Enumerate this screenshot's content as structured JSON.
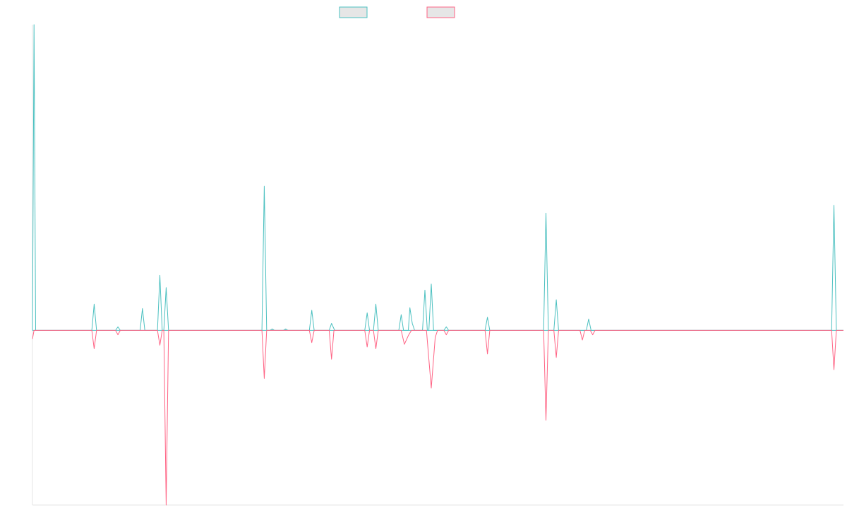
{
  "chart_data": {
    "type": "line",
    "title": "",
    "xlabel": "",
    "ylabel": "",
    "grid": false,
    "legend": "top-center",
    "ylim": [
      -100,
      175
    ],
    "series": [
      {
        "color": "#4bc0c0",
        "fill": "#e6e6e6",
        "points": [
          [
            0,
            0
          ],
          [
            0.2,
            175
          ],
          [
            0.4,
            0
          ],
          [
            7.5,
            0
          ],
          [
            7.8,
            15
          ],
          [
            8.1,
            0
          ],
          [
            10.5,
            0
          ],
          [
            10.8,
            2
          ],
          [
            11.1,
            0
          ],
          [
            13.6,
            0
          ],
          [
            13.9,
            12.5
          ],
          [
            14.2,
            0
          ],
          [
            15.8,
            0
          ],
          [
            16.1,
            31.5
          ],
          [
            16.4,
            0
          ],
          [
            16.6,
            0
          ],
          [
            16.9,
            24.5
          ],
          [
            17.2,
            0
          ],
          [
            29.0,
            0
          ],
          [
            29.3,
            82.5
          ],
          [
            29.6,
            0
          ],
          [
            30.0,
            0
          ],
          [
            30.3,
            0.8
          ],
          [
            30.6,
            0
          ],
          [
            31.7,
            0
          ],
          [
            32.0,
            0.8
          ],
          [
            32.3,
            0
          ],
          [
            35.0,
            0
          ],
          [
            35.3,
            11.5
          ],
          [
            35.6,
            0
          ],
          [
            37.5,
            0
          ],
          [
            37.8,
            4.0
          ],
          [
            38.2,
            0
          ],
          [
            42.0,
            0
          ],
          [
            42.3,
            10.0
          ],
          [
            42.6,
            0
          ],
          [
            43.1,
            0
          ],
          [
            43.4,
            15.0
          ],
          [
            43.7,
            0
          ],
          [
            46.3,
            0
          ],
          [
            46.6,
            9.0
          ],
          [
            46.9,
            0
          ],
          [
            47.5,
            0
          ],
          [
            47.7,
            13.0
          ],
          [
            48.0,
            4.0
          ],
          [
            48.3,
            0
          ],
          [
            49.3,
            0
          ],
          [
            49.6,
            23.0
          ],
          [
            49.9,
            0
          ],
          [
            50.1,
            0
          ],
          [
            50.4,
            26.5
          ],
          [
            50.7,
            0
          ],
          [
            52.0,
            0
          ],
          [
            52.3,
            2.0
          ],
          [
            52.6,
            0
          ],
          [
            57.2,
            0
          ],
          [
            57.5,
            7.5
          ],
          [
            57.8,
            0
          ],
          [
            64.6,
            0
          ],
          [
            64.9,
            67.0
          ],
          [
            65.2,
            0
          ],
          [
            65.9,
            0
          ],
          [
            66.2,
            17.5
          ],
          [
            66.5,
            0
          ],
          [
            70.0,
            0
          ],
          [
            70.3,
            6.5
          ],
          [
            70.6,
            0
          ],
          [
            101.0,
            0
          ],
          [
            101.3,
            71.5
          ],
          [
            101.6,
            0
          ],
          [
            102.5,
            0
          ]
        ]
      },
      {
        "color": "#ff6384",
        "fill": "#e6e6e6",
        "points": [
          [
            0,
            -5
          ],
          [
            0.2,
            0
          ],
          [
            0.4,
            0
          ],
          [
            7.5,
            0
          ],
          [
            7.8,
            -10.5
          ],
          [
            8.1,
            0
          ],
          [
            10.5,
            0
          ],
          [
            10.8,
            -2.5
          ],
          [
            11.1,
            0
          ],
          [
            15.8,
            0
          ],
          [
            16.1,
            -8.5
          ],
          [
            16.4,
            0
          ],
          [
            16.6,
            0
          ],
          [
            16.9,
            -100
          ],
          [
            17.2,
            0
          ],
          [
            29.0,
            0
          ],
          [
            29.3,
            -27.5
          ],
          [
            29.6,
            0
          ],
          [
            35.0,
            0
          ],
          [
            35.3,
            -7.0
          ],
          [
            35.6,
            0
          ],
          [
            37.5,
            0
          ],
          [
            37.8,
            -16.5
          ],
          [
            38.1,
            0
          ],
          [
            42.0,
            0
          ],
          [
            42.3,
            -9.5
          ],
          [
            42.6,
            0
          ],
          [
            43.1,
            0
          ],
          [
            43.4,
            -10.5
          ],
          [
            43.7,
            0
          ],
          [
            46.6,
            0
          ],
          [
            47.0,
            -8.0
          ],
          [
            47.5,
            -3.0
          ],
          [
            47.9,
            0
          ],
          [
            49.8,
            0
          ],
          [
            50.4,
            -33.0
          ],
          [
            50.9,
            -4.0
          ],
          [
            51.2,
            0
          ],
          [
            52.0,
            0
          ],
          [
            52.3,
            -2.5
          ],
          [
            52.6,
            0
          ],
          [
            57.2,
            0
          ],
          [
            57.5,
            -13.5
          ],
          [
            57.8,
            0
          ],
          [
            64.6,
            0
          ],
          [
            64.9,
            -51.5
          ],
          [
            65.2,
            0
          ],
          [
            65.9,
            0
          ],
          [
            66.2,
            -15.5
          ],
          [
            66.5,
            0
          ],
          [
            69.2,
            0
          ],
          [
            69.5,
            -5.5
          ],
          [
            69.8,
            0
          ],
          [
            70.5,
            0
          ],
          [
            70.8,
            -2.5
          ],
          [
            71.1,
            0
          ],
          [
            101.0,
            0
          ],
          [
            101.3,
            -22.5
          ],
          [
            101.6,
            0
          ],
          [
            102.5,
            0
          ]
        ]
      }
    ],
    "xlim": [
      0,
      102.5
    ]
  }
}
